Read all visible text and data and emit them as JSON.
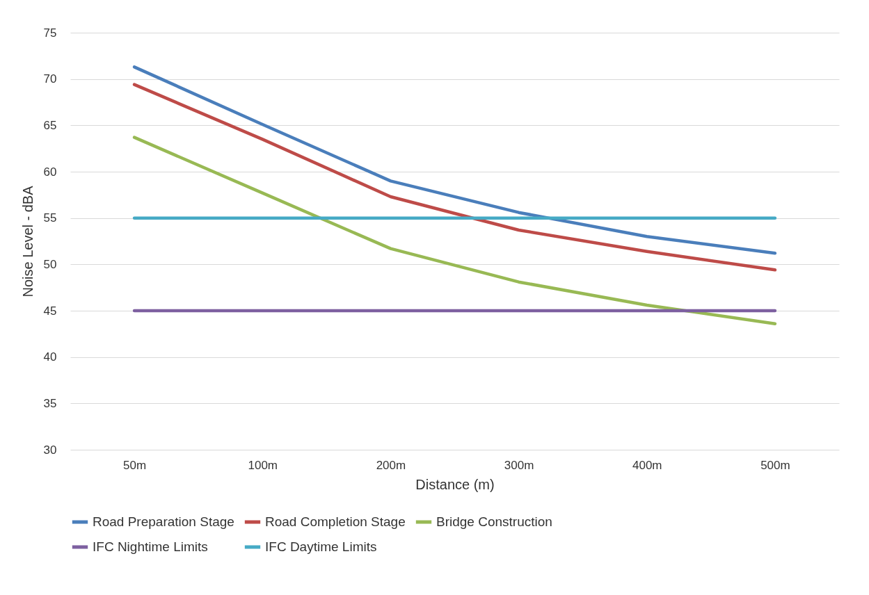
{
  "chart_data": {
    "type": "line",
    "xlabel": "Distance (m)",
    "ylabel": "Noise Level - dBA",
    "categories": [
      "50m",
      "100m",
      "200m",
      "300m",
      "400m",
      "500m"
    ],
    "series": [
      {
        "name": "Road Preparation Stage",
        "color": "#4a7ebb",
        "values": [
          71.3,
          65.1,
          59.0,
          55.6,
          53.0,
          51.2
        ]
      },
      {
        "name": "Road Completion Stage",
        "color": "#be4b48",
        "values": [
          69.4,
          63.5,
          57.3,
          53.7,
          51.4,
          49.4
        ]
      },
      {
        "name": "Bridge Construction",
        "color": "#98b954",
        "values": [
          63.7,
          57.7,
          51.7,
          48.1,
          45.6,
          43.6
        ]
      },
      {
        "name": "IFC Nightime Limits",
        "color": "#7d60a0",
        "values": [
          45,
          45,
          45,
          45,
          45,
          45
        ]
      },
      {
        "name": "IFC Daytime Limits",
        "color": "#46aac5",
        "values": [
          55,
          55,
          55,
          55,
          55,
          55
        ]
      }
    ],
    "ylim": [
      30,
      75
    ],
    "yticks": [
      30,
      35,
      40,
      45,
      50,
      55,
      60,
      65,
      70,
      75
    ],
    "grid": "y",
    "legend": "bottom",
    "marker": "none",
    "line_style": "solid"
  }
}
